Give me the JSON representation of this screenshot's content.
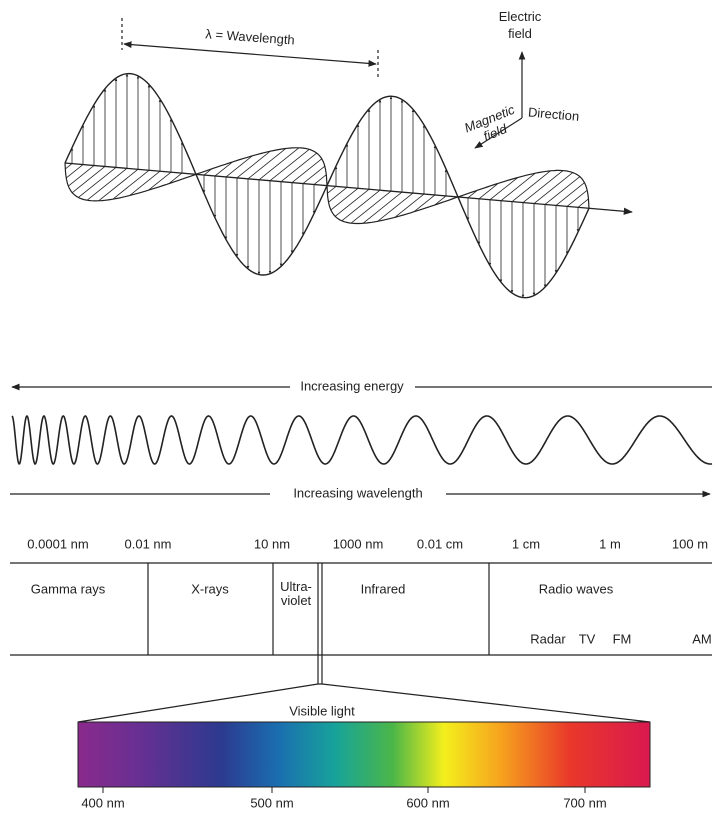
{
  "wave_diagram": {
    "wavelength_label": "λ = Wavelength",
    "electric_field": [
      "Electric",
      "field"
    ],
    "magnetic_field": [
      "Magnetic",
      "field"
    ],
    "direction": "Direction"
  },
  "spectrum": {
    "increasing_energy": "Increasing energy",
    "increasing_wavelength": "Increasing wavelength",
    "scale": [
      "0.0001 nm",
      "0.01 nm",
      "10 nm",
      "1000 nm",
      "0.01 cm",
      "1 cm",
      "1 m",
      "100 m"
    ],
    "regions": {
      "gamma": "Gamma rays",
      "xrays": "X-rays",
      "uv": [
        "Ultra-",
        "violet"
      ],
      "infrared": "Infrared",
      "radio": "Radio waves"
    },
    "radio_bands": [
      "Radar",
      "TV",
      "FM",
      "AM"
    ],
    "visible_light": "Visible light",
    "visible_scale": [
      "400 nm",
      "500 nm",
      "600 nm",
      "700 nm"
    ]
  }
}
